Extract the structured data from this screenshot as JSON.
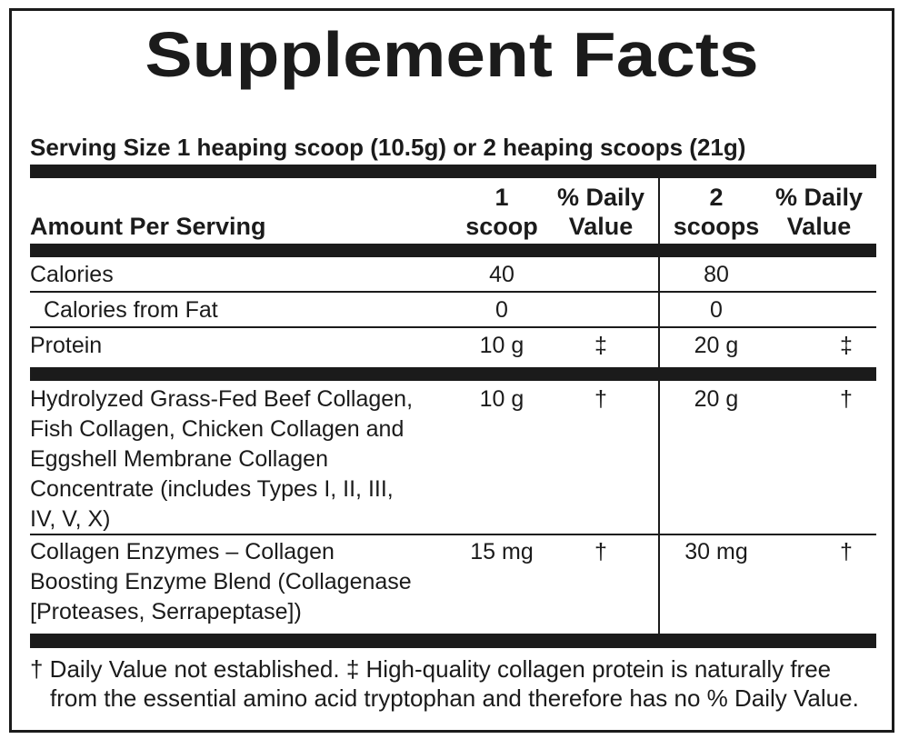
{
  "title": "Supplement Facts",
  "serving_size": "Serving Size 1 heaping scoop (10.5g) or 2 heaping scoops (21g)",
  "header": {
    "amount_per_serving": "Amount Per Serving",
    "col1_line1": "1",
    "col1_line2": "scoop",
    "col2_line1": "% Daily",
    "col2_line2": "Value",
    "col3_line1": "2",
    "col3_line2": "scoops",
    "col4_line1": "% Daily",
    "col4_line2": "Value"
  },
  "rows": [
    {
      "name": "Calories",
      "one_scoop": "40",
      "one_dv": "",
      "two_scoops": "80",
      "two_dv": ""
    },
    {
      "name": "Calories from Fat",
      "one_scoop": "0",
      "one_dv": "",
      "two_scoops": "0",
      "two_dv": ""
    },
    {
      "name": "Protein",
      "one_scoop": "10 g",
      "one_dv": "‡",
      "two_scoops": "20 g",
      "two_dv": "‡"
    },
    {
      "name": "Hydrolyzed Grass-Fed Beef Collagen, Fish Collagen, Chicken Collagen and Eggshell Membrane Collagen Concentrate (includes Types I, II, III, IV, V, X)",
      "one_scoop": "10 g",
      "one_dv": "†",
      "two_scoops": "20 g",
      "two_dv": "†"
    },
    {
      "name": "Collagen Enzymes – Collagen Boosting Enzyme Blend (Collagenase [Proteases, Serrapeptase])",
      "one_scoop": "15 mg",
      "one_dv": "†",
      "two_scoops": "30 mg",
      "two_dv": "†"
    }
  ],
  "footnote_line1": "† Daily Value not established.  ‡ High-quality collagen protein is naturally free",
  "footnote_line2": "from the essential amino acid tryptophan and therefore has no % Daily Value."
}
